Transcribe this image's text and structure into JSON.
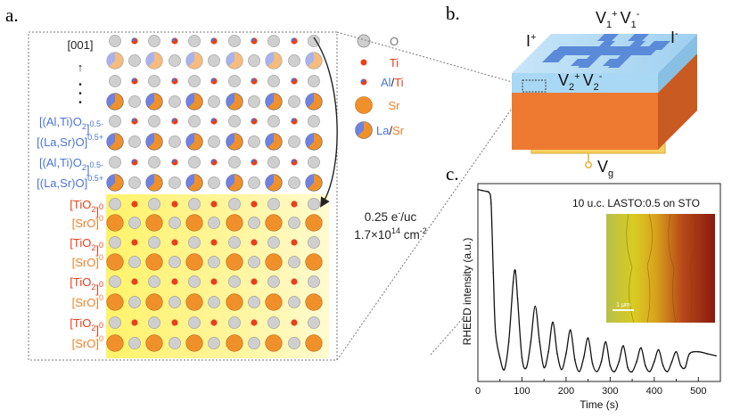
{
  "panels": {
    "a": "a.",
    "b": "b.",
    "c": "c."
  },
  "panel_a": {
    "direction": "[001]",
    "arrow_glyph": "↑",
    "dots_glyph": "•",
    "film_layers": [
      {
        "base": "[(Al,Ti)O",
        "sub": "2",
        "close": "]",
        "sup": "0.5-"
      },
      {
        "base": "[(La,Sr)O]",
        "sub": "",
        "close": "",
        "sup": "0.5+"
      },
      {
        "base": "[(Al,Ti)O",
        "sub": "2",
        "close": "]",
        "sup": "0.5-"
      },
      {
        "base": "[(La,Sr)O]",
        "sub": "",
        "close": "",
        "sup": "0.5+"
      }
    ],
    "substrate_layers": [
      {
        "base": "[TiO",
        "sub": "2",
        "close": "]",
        "sup": "0"
      },
      {
        "base": "[SrO]",
        "sub": "",
        "close": "",
        "sup": "0"
      },
      {
        "base": "[TiO",
        "sub": "2",
        "close": "]",
        "sup": "0"
      },
      {
        "base": "[SrO]",
        "sub": "",
        "close": "",
        "sup": "0"
      },
      {
        "base": "[TiO",
        "sub": "2",
        "close": "]",
        "sup": "0"
      },
      {
        "base": "[SrO]",
        "sub": "",
        "close": "",
        "sup": "0"
      },
      {
        "base": "[TiO",
        "sub": "2",
        "close": "]",
        "sup": "0"
      },
      {
        "base": "[SrO]",
        "sub": "",
        "close": "",
        "sup": "0"
      }
    ],
    "legend": {
      "o_label": "O",
      "ti_label": "Ti",
      "al_label": "Al",
      "slash": "/",
      "ti2_label": "Ti",
      "sr_label": "Sr",
      "la_label": "La",
      "slash2": "/",
      "sr2_label": "Sr"
    },
    "charge_line1_a": "0.25 e",
    "charge_line1_sup": "-",
    "charge_line1_b": "/uc",
    "charge_line2_a": "1.7×10",
    "charge_line2_sup1": "14",
    "charge_line2_b": " cm",
    "charge_line2_sup2": "-2"
  },
  "panel_b": {
    "v1_label_a": "V",
    "v1_sub": "1",
    "v1_sup": "+",
    "v1b_label": "V",
    "v1b_sub": "1",
    "v1b_sup": "-",
    "i_plus": "I",
    "i_plus_sup": "+",
    "i_minus": "I",
    "i_minus_sup": "-",
    "v2_label": "V",
    "v2_sub": "2",
    "v2_sup": "+",
    "v2b_label": "V",
    "v2b_sub": "2",
    "v2b_sup": "-",
    "vg_label": "V",
    "vg_sub": "g"
  },
  "panel_c": {
    "inset_title": "10 u.c. LASTO:0.5 on STO",
    "scale_bar": "1 μm"
  },
  "chart_data": {
    "type": "line",
    "title": "",
    "xlabel": "Time (s)",
    "ylabel": "RHEED intensity (a.u.)",
    "xlim": [
      0,
      550
    ],
    "ylim": [
      0,
      1
    ],
    "x_ticks": [
      0,
      100,
      200,
      300,
      400,
      500
    ],
    "y_ticks": [],
    "series": [
      {
        "name": "RHEED intensity",
        "x": [
          0,
          10,
          20,
          25,
          30,
          35,
          40,
          50,
          60,
          70,
          80,
          85,
          90,
          100,
          110,
          120,
          130,
          140,
          150,
          160,
          170,
          180,
          190,
          200,
          210,
          220,
          230,
          240,
          250,
          260,
          270,
          280,
          290,
          300,
          310,
          320,
          330,
          340,
          350,
          360,
          370,
          380,
          390,
          400,
          410,
          420,
          430,
          440,
          450,
          460,
          470,
          480,
          500,
          520,
          540
        ],
        "y": [
          0.97,
          0.965,
          0.96,
          0.955,
          0.9,
          0.55,
          0.25,
          0.12,
          0.06,
          0.2,
          0.5,
          0.56,
          0.42,
          0.12,
          0.07,
          0.2,
          0.38,
          0.2,
          0.07,
          0.15,
          0.3,
          0.14,
          0.06,
          0.14,
          0.26,
          0.11,
          0.05,
          0.12,
          0.22,
          0.09,
          0.05,
          0.1,
          0.2,
          0.08,
          0.05,
          0.1,
          0.18,
          0.07,
          0.05,
          0.1,
          0.17,
          0.08,
          0.05,
          0.1,
          0.16,
          0.08,
          0.05,
          0.1,
          0.15,
          0.08,
          0.07,
          0.14,
          0.15,
          0.14,
          0.13
        ]
      }
    ]
  },
  "colors": {
    "orange": "#f0902a",
    "red": "#e8401c",
    "blue": "#6f82e0",
    "grey": "#cfcfcf",
    "yellow": "#fff59a",
    "film_text": "#4a74d8",
    "sub_text": "#f08028"
  }
}
